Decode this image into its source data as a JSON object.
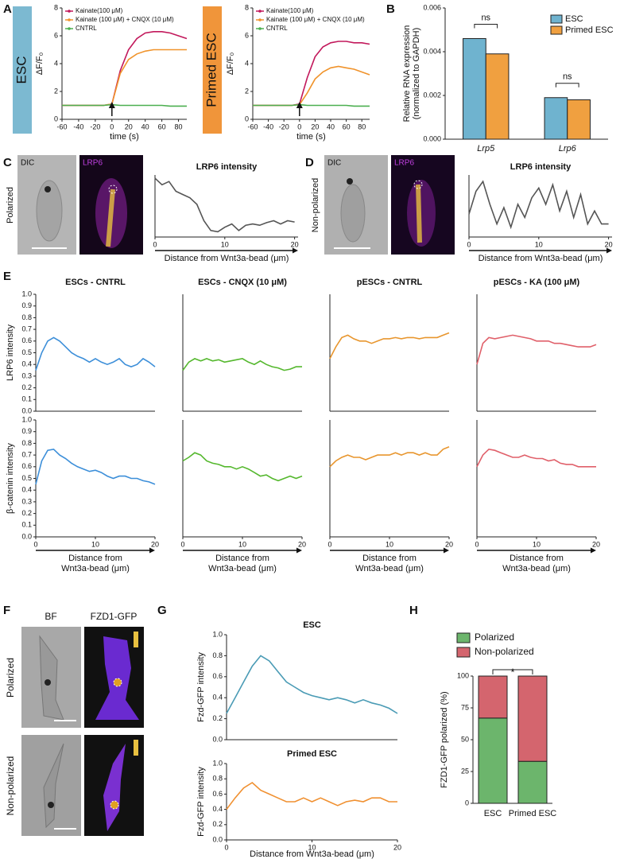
{
  "panel_labels": [
    "A",
    "B",
    "C",
    "D",
    "E",
    "F",
    "G",
    "H"
  ],
  "images": {
    "C": {
      "row_label": "Polarized",
      "labels": [
        "DIC",
        "LRP6"
      ]
    },
    "D": {
      "row_label": "Non-polarized",
      "labels": [
        "DIC",
        "LRP6"
      ]
    },
    "F": {
      "columns": [
        "BF",
        "FZD1-GFP"
      ],
      "rows": [
        "Polarized",
        "Non-polarized"
      ]
    }
  },
  "chart_data": [
    {
      "type": "line",
      "title": "ESC",
      "x_label": "time (s)",
      "y_label": "ΔF/F₀",
      "legend": "upper left",
      "x": [
        -60,
        -50,
        -40,
        -30,
        -20,
        -10,
        0,
        10,
        20,
        30,
        40,
        50,
        60,
        70,
        80,
        90
      ],
      "xlim": [
        -60,
        90
      ],
      "xticks": [
        -60,
        -40,
        -20,
        0,
        20,
        40,
        60,
        80
      ],
      "ylim": [
        0,
        8
      ],
      "yticks": [
        0,
        2,
        4,
        6,
        8
      ],
      "series": [
        {
          "name": "Kainate(100 μM)",
          "color": "#c2185b",
          "values": [
            1,
            1,
            1,
            1,
            1,
            1,
            1.1,
            3.5,
            5.0,
            5.8,
            6.2,
            6.3,
            6.3,
            6.2,
            6.0,
            5.8
          ]
        },
        {
          "name": "Kainate (100 μM) + CNQX (10 μM)",
          "color": "#f0932b",
          "values": [
            1,
            1,
            1,
            1,
            1,
            1,
            1.1,
            3.3,
            4.3,
            4.7,
            4.9,
            5.0,
            5.0,
            5.0,
            5.0,
            5.0
          ]
        },
        {
          "name": "CNTRL",
          "color": "#4caf50",
          "values": [
            1,
            1,
            1,
            1,
            1,
            1,
            1.05,
            1,
            1,
            1,
            1,
            1,
            1,
            0.95,
            0.95,
            0.95
          ]
        }
      ]
    },
    {
      "type": "line",
      "title": "Primed ESC",
      "x_label": "time (s)",
      "y_label": "ΔF/F₀",
      "legend": "upper left",
      "x": [
        -60,
        -50,
        -40,
        -30,
        -20,
        -10,
        0,
        10,
        20,
        30,
        40,
        50,
        60,
        70,
        80,
        90
      ],
      "xlim": [
        -60,
        90
      ],
      "xticks": [
        -60,
        -40,
        -20,
        0,
        20,
        40,
        60,
        80
      ],
      "ylim": [
        0,
        8
      ],
      "yticks": [
        0,
        2,
        4,
        6,
        8
      ],
      "series": [
        {
          "name": "Kainate(100 μM)",
          "color": "#c2185b",
          "values": [
            1,
            1,
            1,
            1,
            1,
            1,
            1.1,
            3.0,
            4.5,
            5.2,
            5.5,
            5.6,
            5.6,
            5.5,
            5.5,
            5.4
          ]
        },
        {
          "name": "Kainate (100 μM) + CNQX (10 μM)",
          "color": "#f0932b",
          "values": [
            1,
            1,
            1,
            1,
            1,
            1,
            1.05,
            1.9,
            2.9,
            3.4,
            3.7,
            3.8,
            3.7,
            3.6,
            3.4,
            3.2
          ]
        },
        {
          "name": "CNTRL",
          "color": "#4caf50",
          "values": [
            1,
            1,
            1,
            1,
            1,
            1,
            1.05,
            1,
            1,
            1,
            1,
            1,
            1,
            0.95,
            0.95,
            0.95
          ]
        }
      ]
    },
    {
      "type": "bar",
      "y_label": [
        "Relative RNA expression",
        "(normalized to GAPDH)"
      ],
      "legend": "upper right",
      "categories": [
        "Lrp5",
        "Lrp6"
      ],
      "ylim": [
        0,
        0.006
      ],
      "yticks": [
        {
          "value": 0,
          "label": "0.000"
        },
        {
          "value": 0.002,
          "label": "0.002"
        },
        {
          "value": 0.004,
          "label": "0.004"
        },
        {
          "value": 0.006,
          "label": "0.006"
        }
      ],
      "series": [
        {
          "name": "ESC",
          "color": "#6fb3cf",
          "values": [
            0.0046,
            0.0019
          ]
        },
        {
          "name": "Primed ESC",
          "color": "#f0a040",
          "values": [
            0.0039,
            0.0018
          ]
        }
      ],
      "annotations": [
        "ns",
        "ns"
      ]
    },
    {
      "type": "line",
      "title": "LRP6 intensity",
      "x_label": "Distance from Wnt3a-bead (μm)",
      "color": "#555555",
      "x": [
        0,
        1,
        2,
        3,
        4,
        5,
        6,
        7,
        8,
        9,
        10,
        11,
        12,
        13,
        14,
        15,
        16,
        17,
        18,
        19,
        20
      ],
      "xlim": [
        0,
        20.5
      ],
      "xticks": [
        0,
        10,
        20
      ],
      "ylim": [
        0.1,
        1.05
      ],
      "values": [
        1.0,
        0.9,
        0.95,
        0.8,
        0.75,
        0.7,
        0.6,
        0.35,
        0.2,
        0.18,
        0.25,
        0.3,
        0.2,
        0.28,
        0.3,
        0.28,
        0.32,
        0.35,
        0.3,
        0.35,
        0.33
      ]
    },
    {
      "type": "line",
      "title": "LRP6 intensity",
      "x_label": "Distance from Wnt3a-bead (μm)",
      "color": "#555555",
      "x": [
        0,
        1,
        2,
        3,
        4,
        5,
        6,
        7,
        8,
        9,
        10,
        11,
        12,
        13,
        14,
        15,
        16,
        17,
        18,
        19,
        20
      ],
      "xlim": [
        0,
        20.5
      ],
      "xticks": [
        0,
        10,
        20
      ],
      "ylim": [
        0.1,
        1.05
      ],
      "values": [
        0.45,
        0.8,
        0.95,
        0.6,
        0.3,
        0.55,
        0.25,
        0.6,
        0.4,
        0.7,
        0.85,
        0.6,
        0.9,
        0.5,
        0.8,
        0.4,
        0.75,
        0.3,
        0.5,
        0.3,
        0.3
      ]
    },
    {
      "type": "line",
      "title": "ESCs - CNTRL",
      "y_label": "LRP6 intensity",
      "color": "#3d8fd9",
      "x": [
        0,
        1,
        2,
        3,
        4,
        5,
        6,
        7,
        8,
        9,
        10,
        11,
        12,
        13,
        14,
        15,
        16,
        17,
        18,
        19,
        20
      ],
      "xlim": [
        0,
        20
      ],
      "ylim": [
        0,
        1
      ],
      "yticks": [
        {
          "value": 0,
          "label": "0.0"
        },
        0.1,
        0.2,
        0.3,
        0.4,
        0.5,
        0.6,
        0.7,
        0.8,
        0.9,
        {
          "value": 1,
          "label": "1.0"
        }
      ],
      "values": [
        0.35,
        0.5,
        0.6,
        0.63,
        0.6,
        0.55,
        0.5,
        0.47,
        0.45,
        0.42,
        0.45,
        0.42,
        0.4,
        0.42,
        0.45,
        0.4,
        0.38,
        0.4,
        0.45,
        0.42,
        0.38
      ]
    },
    {
      "type": "line",
      "title": "ESCs - CNQX (10 μM)",
      "color": "#55b82e",
      "x": [
        0,
        1,
        2,
        3,
        4,
        5,
        6,
        7,
        8,
        9,
        10,
        11,
        12,
        13,
        14,
        15,
        16,
        17,
        18,
        19,
        20
      ],
      "xlim": [
        0,
        20
      ],
      "ylim": [
        0,
        1
      ],
      "values": [
        0.35,
        0.42,
        0.45,
        0.43,
        0.45,
        0.43,
        0.44,
        0.42,
        0.43,
        0.44,
        0.45,
        0.42,
        0.4,
        0.43,
        0.4,
        0.38,
        0.37,
        0.35,
        0.36,
        0.38,
        0.38
      ]
    },
    {
      "type": "line",
      "title": "pESCs - CNTRL",
      "color": "#e8962e",
      "x": [
        0,
        1,
        2,
        3,
        4,
        5,
        6,
        7,
        8,
        9,
        10,
        11,
        12,
        13,
        14,
        15,
        16,
        17,
        18,
        19,
        20
      ],
      "xlim": [
        0,
        20
      ],
      "ylim": [
        0,
        1
      ],
      "values": [
        0.45,
        0.55,
        0.63,
        0.65,
        0.62,
        0.6,
        0.6,
        0.58,
        0.6,
        0.62,
        0.62,
        0.63,
        0.62,
        0.63,
        0.63,
        0.62,
        0.63,
        0.63,
        0.63,
        0.65,
        0.67
      ]
    },
    {
      "type": "line",
      "title": "pESCs - KA (100 μM)",
      "color": "#e0606a",
      "x": [
        0,
        1,
        2,
        3,
        4,
        5,
        6,
        7,
        8,
        9,
        10,
        11,
        12,
        13,
        14,
        15,
        16,
        17,
        18,
        19,
        20
      ],
      "xlim": [
        0,
        20
      ],
      "ylim": [
        0,
        1
      ],
      "values": [
        0.4,
        0.58,
        0.63,
        0.62,
        0.63,
        0.64,
        0.65,
        0.64,
        0.63,
        0.62,
        0.6,
        0.6,
        0.6,
        0.58,
        0.58,
        0.57,
        0.56,
        0.55,
        0.55,
        0.55,
        0.57
      ]
    },
    {
      "type": "line",
      "y_label": "β-catenin intensity",
      "x_label": [
        "Distance from",
        "Wnt3a-bead (μm)"
      ],
      "color": "#3d8fd9",
      "x": [
        0,
        1,
        2,
        3,
        4,
        5,
        6,
        7,
        8,
        9,
        10,
        11,
        12,
        13,
        14,
        15,
        16,
        17,
        18,
        19,
        20
      ],
      "xlim": [
        0,
        20
      ],
      "xticks": [
        0,
        10,
        20
      ],
      "ylim": [
        0,
        1
      ],
      "yticks": [
        {
          "value": 0,
          "label": "0.0"
        },
        0.1,
        0.2,
        0.3,
        0.4,
        0.5,
        0.6,
        0.7,
        0.8,
        0.9,
        {
          "value": 1,
          "label": "1.0"
        }
      ],
      "values": [
        0.45,
        0.65,
        0.74,
        0.75,
        0.7,
        0.67,
        0.63,
        0.6,
        0.58,
        0.56,
        0.57,
        0.55,
        0.52,
        0.5,
        0.52,
        0.52,
        0.5,
        0.5,
        0.48,
        0.47,
        0.45
      ]
    },
    {
      "type": "line",
      "x_label": [
        "Distance from",
        "Wnt3a-bead (μm)"
      ],
      "color": "#55b82e",
      "x": [
        0,
        1,
        2,
        3,
        4,
        5,
        6,
        7,
        8,
        9,
        10,
        11,
        12,
        13,
        14,
        15,
        16,
        17,
        18,
        19,
        20
      ],
      "xlim": [
        0,
        20
      ],
      "xticks": [
        0,
        10,
        20
      ],
      "ylim": [
        0,
        1
      ],
      "values": [
        0.65,
        0.68,
        0.72,
        0.7,
        0.65,
        0.63,
        0.62,
        0.6,
        0.6,
        0.58,
        0.6,
        0.58,
        0.55,
        0.52,
        0.53,
        0.5,
        0.48,
        0.5,
        0.52,
        0.5,
        0.52
      ]
    },
    {
      "type": "line",
      "x_label": [
        "Distance from",
        "Wnt3a-bead (μm)"
      ],
      "color": "#e8962e",
      "x": [
        0,
        1,
        2,
        3,
        4,
        5,
        6,
        7,
        8,
        9,
        10,
        11,
        12,
        13,
        14,
        15,
        16,
        17,
        18,
        19,
        20
      ],
      "xlim": [
        0,
        20
      ],
      "xticks": [
        0,
        10,
        20
      ],
      "ylim": [
        0,
        1
      ],
      "values": [
        0.6,
        0.65,
        0.68,
        0.7,
        0.68,
        0.68,
        0.66,
        0.68,
        0.7,
        0.7,
        0.7,
        0.72,
        0.7,
        0.72,
        0.72,
        0.7,
        0.72,
        0.7,
        0.7,
        0.75,
        0.77
      ]
    },
    {
      "type": "line",
      "x_label": [
        "Distance from",
        "Wnt3a-bead (μm)"
      ],
      "color": "#e0606a",
      "x": [
        0,
        1,
        2,
        3,
        4,
        5,
        6,
        7,
        8,
        9,
        10,
        11,
        12,
        13,
        14,
        15,
        16,
        17,
        18,
        19,
        20
      ],
      "xlim": [
        0,
        20
      ],
      "xticks": [
        0,
        10,
        20
      ],
      "ylim": [
        0,
        1
      ],
      "values": [
        0.6,
        0.7,
        0.75,
        0.74,
        0.72,
        0.7,
        0.68,
        0.68,
        0.7,
        0.68,
        0.67,
        0.67,
        0.65,
        0.66,
        0.63,
        0.62,
        0.62,
        0.6,
        0.6,
        0.6,
        0.6
      ]
    },
    {
      "type": "line",
      "title": "ESC",
      "y_label": "Fzd-GFP intensity",
      "color": "#4a9bb5",
      "x": [
        0,
        1,
        2,
        3,
        4,
        5,
        6,
        7,
        8,
        9,
        10,
        11,
        12,
        13,
        14,
        15,
        16,
        17,
        18,
        19,
        20
      ],
      "xlim": [
        0,
        20
      ],
      "ylim": [
        0,
        1
      ],
      "yticks": [
        {
          "value": 0,
          "label": "0.0"
        },
        0.2,
        0.4,
        0.6,
        0.8,
        {
          "value": 1,
          "label": "1.0"
        }
      ],
      "values": [
        0.25,
        0.4,
        0.55,
        0.7,
        0.8,
        0.75,
        0.65,
        0.55,
        0.5,
        0.45,
        0.42,
        0.4,
        0.38,
        0.4,
        0.38,
        0.35,
        0.38,
        0.35,
        0.33,
        0.3,
        0.25
      ]
    },
    {
      "type": "line",
      "title": "Primed ESC",
      "y_label": "Fzd-GFP intensity",
      "x_label": "Distance from Wnt3a-bead (μm)",
      "color": "#f09030",
      "x": [
        0,
        1,
        2,
        3,
        4,
        5,
        6,
        7,
        8,
        9,
        10,
        11,
        12,
        13,
        14,
        15,
        16,
        17,
        18,
        19,
        20
      ],
      "xlim": [
        0,
        20
      ],
      "xticks": [
        0,
        10,
        20
      ],
      "ylim": [
        0,
        1
      ],
      "yticks": [
        {
          "value": 0,
          "label": "0.0"
        },
        0.2,
        0.4,
        0.6,
        0.8,
        {
          "value": 1,
          "label": "1.0"
        }
      ],
      "values": [
        0.4,
        0.55,
        0.68,
        0.75,
        0.65,
        0.6,
        0.55,
        0.5,
        0.5,
        0.55,
        0.5,
        0.55,
        0.5,
        0.45,
        0.5,
        0.52,
        0.5,
        0.55,
        0.55,
        0.5,
        0.5
      ]
    },
    {
      "type": "stacked_bar",
      "y_label": "FZD1-GFP polarized (%)",
      "legend": "top",
      "categories": [
        "ESC",
        "Primed ESC"
      ],
      "ylim": [
        0,
        100
      ],
      "yticks": [
        0,
        25,
        50,
        75,
        100
      ],
      "series": [
        {
          "name": "Polarized",
          "color": "#6cb56c",
          "values": [
            67,
            33
          ]
        },
        {
          "name": "Non-polarized",
          "color": "#d4656e",
          "values": [
            33,
            67
          ]
        }
      ],
      "annotations": [
        "*"
      ]
    }
  ]
}
